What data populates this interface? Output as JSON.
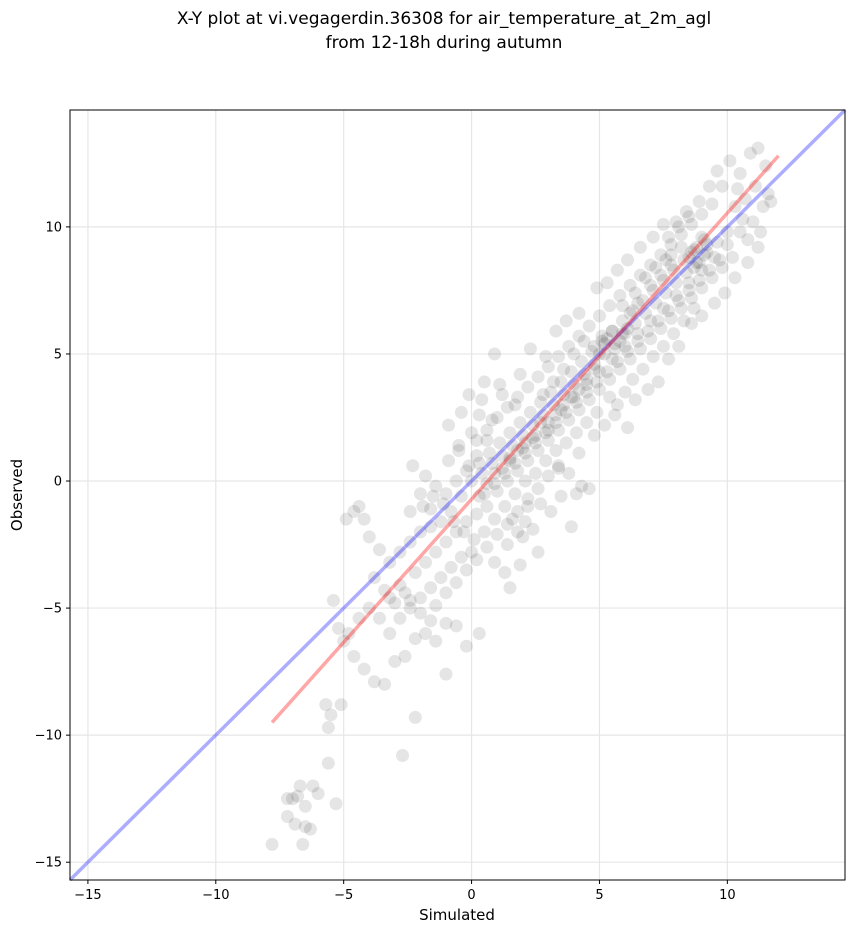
{
  "chart_data": {
    "type": "scatter",
    "title": [
      "X-Y plot at vi.vegagerdin.36308 for air_temperature_at_2m_agl",
      "from 12-18h during autumn"
    ],
    "xlabel": "Simulated",
    "ylabel": "Observed",
    "xlim": [
      -15.7,
      14.6
    ],
    "ylim": [
      -15.7,
      14.6
    ],
    "xticks": [
      -15,
      -10,
      -5,
      0,
      5,
      10
    ],
    "yticks": [
      -15,
      -10,
      -5,
      0,
      5,
      10
    ],
    "xtick_labels": [
      "−15",
      "−10",
      "−5",
      "0",
      "5",
      "10"
    ],
    "ytick_labels": [
      "−15",
      "−10",
      "−5",
      "0",
      "5",
      "10"
    ],
    "grid": true,
    "point_color": "#000000",
    "points": [
      [
        -7.8,
        -14.3
      ],
      [
        -6.6,
        -14.3
      ],
      [
        -7.2,
        -13.2
      ],
      [
        -6.9,
        -13.5
      ],
      [
        -6.5,
        -13.6
      ],
      [
        -6.3,
        -13.7
      ],
      [
        -7.0,
        -12.5
      ],
      [
        -6.7,
        -12.0
      ],
      [
        -6.2,
        -12.0
      ],
      [
        -6.0,
        -12.3
      ],
      [
        -6.5,
        -12.8
      ],
      [
        -5.3,
        -12.7
      ],
      [
        -7.2,
        -12.5
      ],
      [
        -6.8,
        -12.4
      ],
      [
        -5.6,
        -11.1
      ],
      [
        -5.6,
        -9.7
      ],
      [
        -5.5,
        -9.2
      ],
      [
        -5.7,
        -8.8
      ],
      [
        -5.1,
        -8.8
      ],
      [
        -2.7,
        -10.8
      ],
      [
        -2.2,
        -9.3
      ],
      [
        -1.0,
        -7.6
      ],
      [
        -0.2,
        -6.5
      ],
      [
        0.3,
        -6.0
      ],
      [
        -5.4,
        -4.7
      ],
      [
        -5.2,
        -5.8
      ],
      [
        -5.0,
        -6.3
      ],
      [
        -4.6,
        -6.9
      ],
      [
        -4.2,
        -7.4
      ],
      [
        -3.8,
        -7.9
      ],
      [
        -3.4,
        -8.0
      ],
      [
        -3.0,
        -7.1
      ],
      [
        -2.6,
        -6.9
      ],
      [
        -2.2,
        -6.2
      ],
      [
        -1.8,
        -6.0
      ],
      [
        -1.4,
        -6.3
      ],
      [
        -1.0,
        -5.6
      ],
      [
        -0.6,
        -5.7
      ],
      [
        -4.8,
        -6.0
      ],
      [
        -4.4,
        -5.4
      ],
      [
        -4.0,
        -5.0
      ],
      [
        -3.6,
        -5.4
      ],
      [
        -3.2,
        -6.0
      ],
      [
        -2.8,
        -5.4
      ],
      [
        -2.4,
        -5.0
      ],
      [
        -2.0,
        -4.6
      ],
      [
        -1.6,
        -4.2
      ],
      [
        -1.2,
        -3.8
      ],
      [
        -0.8,
        -3.4
      ],
      [
        -0.4,
        -3.0
      ],
      [
        0.0,
        -2.8
      ],
      [
        -4.9,
        -1.5
      ],
      [
        -4.6,
        -1.2
      ],
      [
        -4.4,
        -1.0
      ],
      [
        -4.2,
        -1.5
      ],
      [
        -4.0,
        -2.2
      ],
      [
        -3.6,
        -2.7
      ],
      [
        -3.2,
        -3.2
      ],
      [
        -2.8,
        -2.8
      ],
      [
        -2.4,
        -2.4
      ],
      [
        -2.0,
        -2.0
      ],
      [
        -1.6,
        -1.8
      ],
      [
        -1.2,
        -1.6
      ],
      [
        -0.8,
        -1.2
      ],
      [
        -0.4,
        -0.6
      ],
      [
        -3.8,
        -3.8
      ],
      [
        -3.4,
        -4.3
      ],
      [
        -3.0,
        -4.8
      ],
      [
        -2.6,
        -4.4
      ],
      [
        -2.2,
        -3.6
      ],
      [
        -1.8,
        -3.2
      ],
      [
        -1.4,
        -2.8
      ],
      [
        -1.0,
        -2.4
      ],
      [
        -0.6,
        -2.0
      ],
      [
        -0.2,
        -1.6
      ],
      [
        0.2,
        -1.3
      ],
      [
        0.6,
        -1.0
      ],
      [
        -2.3,
        0.6
      ],
      [
        -1.8,
        0.2
      ],
      [
        -1.4,
        -0.2
      ],
      [
        -1.0,
        -0.5
      ],
      [
        -0.6,
        0.0
      ],
      [
        -0.2,
        0.4
      ],
      [
        -0.9,
        2.2
      ],
      [
        -0.5,
        1.4
      ],
      [
        -0.1,
        3.4
      ],
      [
        0.3,
        2.6
      ],
      [
        0.5,
        3.9
      ],
      [
        0.9,
        5.0
      ],
      [
        0.2,
        1.0
      ],
      [
        0.6,
        1.6
      ],
      [
        0.9,
        -3.2
      ],
      [
        1.3,
        -3.6
      ],
      [
        1.5,
        -4.2
      ],
      [
        1.9,
        -3.3
      ],
      [
        1.4,
        -2.5
      ],
      [
        1.8,
        -2.0
      ],
      [
        2.1,
        -1.6
      ],
      [
        2.6,
        -2.8
      ],
      [
        2.2,
        -1.0
      ],
      [
        2.7,
        -0.9
      ],
      [
        3.1,
        -1.2
      ],
      [
        3.5,
        -0.6
      ],
      [
        3.9,
        -1.8
      ],
      [
        4.1,
        -0.5
      ],
      [
        4.3,
        -0.2
      ],
      [
        4.6,
        -0.3
      ],
      [
        3.8,
        0.3
      ],
      [
        3.4,
        0.6
      ],
      [
        0.0,
        0.0
      ],
      [
        0.4,
        0.3
      ],
      [
        0.8,
        0.7
      ],
      [
        1.2,
        1.0
      ],
      [
        1.6,
        1.4
      ],
      [
        2.0,
        1.8
      ],
      [
        2.4,
        2.2
      ],
      [
        2.8,
        2.6
      ],
      [
        3.2,
        3.0
      ],
      [
        3.6,
        3.4
      ],
      [
        4.0,
        3.8
      ],
      [
        4.4,
        4.2
      ],
      [
        4.8,
        4.6
      ],
      [
        5.2,
        5.0
      ],
      [
        5.6,
        5.4
      ],
      [
        6.0,
        5.8
      ],
      [
        6.4,
        6.2
      ],
      [
        6.8,
        6.6
      ],
      [
        7.2,
        7.0
      ],
      [
        7.6,
        7.4
      ],
      [
        8.0,
        7.8
      ],
      [
        8.4,
        8.2
      ],
      [
        8.8,
        8.6
      ],
      [
        9.2,
        9.0
      ],
      [
        9.6,
        9.4
      ],
      [
        10.0,
        9.8
      ],
      [
        0.2,
        1.6
      ],
      [
        0.6,
        2.0
      ],
      [
        1.0,
        2.5
      ],
      [
        1.4,
        2.9
      ],
      [
        1.8,
        3.3
      ],
      [
        2.2,
        3.7
      ],
      [
        2.6,
        4.1
      ],
      [
        3.0,
        4.5
      ],
      [
        3.4,
        4.9
      ],
      [
        3.8,
        5.3
      ],
      [
        4.2,
        5.7
      ],
      [
        4.6,
        6.1
      ],
      [
        5.0,
        6.5
      ],
      [
        5.4,
        6.9
      ],
      [
        5.8,
        7.3
      ],
      [
        6.2,
        7.7
      ],
      [
        6.6,
        8.1
      ],
      [
        7.0,
        8.5
      ],
      [
        7.4,
        8.9
      ],
      [
        7.8,
        9.3
      ],
      [
        8.2,
        9.7
      ],
      [
        8.6,
        10.1
      ],
      [
        9.0,
        10.5
      ],
      [
        9.4,
        10.9
      ],
      [
        1.0,
        -0.4
      ],
      [
        1.4,
        0.0
      ],
      [
        1.8,
        0.4
      ],
      [
        2.2,
        0.8
      ],
      [
        2.6,
        1.2
      ],
      [
        3.0,
        1.6
      ],
      [
        3.4,
        2.0
      ],
      [
        3.8,
        2.4
      ],
      [
        4.2,
        2.8
      ],
      [
        4.6,
        3.2
      ],
      [
        5.0,
        3.6
      ],
      [
        5.4,
        4.0
      ],
      [
        5.8,
        4.4
      ],
      [
        6.2,
        4.8
      ],
      [
        6.6,
        5.2
      ],
      [
        7.0,
        5.6
      ],
      [
        7.4,
        6.0
      ],
      [
        7.8,
        6.4
      ],
      [
        8.2,
        6.8
      ],
      [
        8.6,
        7.2
      ],
      [
        9.0,
        7.6
      ],
      [
        9.4,
        8.0
      ],
      [
        9.8,
        8.4
      ],
      [
        10.2,
        8.8
      ],
      [
        1.5,
        0.8
      ],
      [
        2.0,
        1.3
      ],
      [
        2.5,
        1.8
      ],
      [
        3.0,
        2.3
      ],
      [
        3.5,
        2.8
      ],
      [
        4.0,
        3.3
      ],
      [
        4.5,
        3.8
      ],
      [
        5.0,
        4.3
      ],
      [
        5.5,
        4.8
      ],
      [
        6.0,
        5.3
      ],
      [
        6.5,
        5.8
      ],
      [
        7.0,
        6.3
      ],
      [
        7.5,
        6.8
      ],
      [
        8.0,
        7.3
      ],
      [
        8.5,
        7.8
      ],
      [
        9.0,
        8.3
      ],
      [
        9.5,
        8.8
      ],
      [
        10.0,
        9.3
      ],
      [
        10.5,
        9.8
      ],
      [
        0.8,
        2.4
      ],
      [
        1.2,
        3.4
      ],
      [
        1.9,
        4.2
      ],
      [
        2.3,
        5.2
      ],
      [
        2.9,
        4.9
      ],
      [
        3.3,
        5.9
      ],
      [
        3.7,
        6.3
      ],
      [
        4.2,
        6.6
      ],
      [
        4.9,
        7.6
      ],
      [
        5.3,
        7.8
      ],
      [
        5.7,
        8.3
      ],
      [
        6.1,
        8.7
      ],
      [
        6.6,
        9.2
      ],
      [
        7.1,
        9.6
      ],
      [
        7.5,
        10.1
      ],
      [
        8.0,
        10.2
      ],
      [
        8.4,
        10.6
      ],
      [
        8.9,
        11.0
      ],
      [
        9.3,
        11.6
      ],
      [
        4.2,
        1.1
      ],
      [
        4.8,
        1.8
      ],
      [
        5.2,
        2.2
      ],
      [
        5.6,
        2.6
      ],
      [
        6.1,
        2.1
      ],
      [
        6.4,
        3.2
      ],
      [
        6.9,
        3.6
      ],
      [
        7.3,
        3.9
      ],
      [
        7.7,
        4.8
      ],
      [
        8.1,
        5.3
      ],
      [
        8.6,
        6.2
      ],
      [
        9.0,
        6.5
      ],
      [
        9.5,
        7.0
      ],
      [
        9.9,
        7.4
      ],
      [
        10.3,
        8.0
      ],
      [
        10.8,
        8.6
      ],
      [
        11.2,
        9.2
      ],
      [
        11.0,
        10.2
      ],
      [
        10.1,
        12.6
      ],
      [
        10.5,
        12.1
      ],
      [
        10.9,
        12.9
      ],
      [
        11.2,
        13.1
      ],
      [
        11.5,
        12.4
      ],
      [
        11.1,
        11.6
      ],
      [
        11.6,
        11.3
      ],
      [
        10.7,
        11.1
      ],
      [
        10.3,
        10.8
      ],
      [
        11.4,
        10.8
      ],
      [
        11.7,
        11.0
      ],
      [
        10.6,
        10.3
      ],
      [
        9.8,
        11.6
      ],
      [
        9.6,
        12.2
      ],
      [
        10.4,
        11.5
      ],
      [
        10.8,
        9.5
      ],
      [
        11.3,
        9.8
      ],
      [
        -2.8,
        -4.1
      ],
      [
        -2.4,
        -4.7
      ],
      [
        -2.0,
        -5.2
      ],
      [
        -1.6,
        -5.5
      ],
      [
        -3.2,
        -4.6
      ],
      [
        -1.4,
        -4.9
      ],
      [
        -1.0,
        -4.4
      ],
      [
        -0.6,
        -4.0
      ],
      [
        -0.2,
        -3.5
      ],
      [
        0.2,
        -3.1
      ],
      [
        0.6,
        -2.6
      ],
      [
        1.0,
        -2.1
      ],
      [
        1.4,
        -1.7
      ],
      [
        1.8,
        -1.2
      ],
      [
        2.2,
        -0.7
      ],
      [
        2.6,
        -0.3
      ],
      [
        3.0,
        0.2
      ],
      [
        3.4,
        0.5
      ],
      [
        -1.9,
        -1.0
      ],
      [
        -1.5,
        -0.6
      ],
      [
        -1.1,
        -0.9
      ],
      [
        -0.7,
        -1.6
      ],
      [
        -0.3,
        -2.0
      ],
      [
        0.1,
        -2.3
      ],
      [
        0.5,
        -2.0
      ],
      [
        0.9,
        -1.5
      ],
      [
        1.3,
        -1.0
      ],
      [
        1.7,
        -0.5
      ],
      [
        2.1,
        0.0
      ],
      [
        2.5,
        0.3
      ],
      [
        2.9,
        0.8
      ],
      [
        3.3,
        1.2
      ],
      [
        3.7,
        1.5
      ],
      [
        4.1,
        1.9
      ],
      [
        4.5,
        2.3
      ],
      [
        4.9,
        2.7
      ],
      [
        0.3,
        0.7
      ],
      [
        0.7,
        1.1
      ],
      [
        1.1,
        1.5
      ],
      [
        1.5,
        1.9
      ],
      [
        1.9,
        2.3
      ],
      [
        2.3,
        2.7
      ],
      [
        2.7,
        3.1
      ],
      [
        3.1,
        3.5
      ],
      [
        3.5,
        3.9
      ],
      [
        3.9,
        4.3
      ],
      [
        4.3,
        4.7
      ],
      [
        4.7,
        5.1
      ],
      [
        5.1,
        5.5
      ],
      [
        5.5,
        5.9
      ],
      [
        5.9,
        6.3
      ],
      [
        6.3,
        6.7
      ],
      [
        6.7,
        7.1
      ],
      [
        7.1,
        7.5
      ],
      [
        7.5,
        7.9
      ],
      [
        7.9,
        8.3
      ],
      [
        8.3,
        8.7
      ],
      [
        8.7,
        9.1
      ],
      [
        9.1,
        9.5
      ],
      [
        0.5,
        -0.5
      ],
      [
        0.9,
        -0.1
      ],
      [
        1.3,
        0.3
      ],
      [
        1.7,
        0.7
      ],
      [
        2.1,
        1.1
      ],
      [
        2.5,
        1.5
      ],
      [
        2.9,
        1.9
      ],
      [
        3.3,
        2.3
      ],
      [
        3.7,
        2.7
      ],
      [
        4.1,
        3.1
      ],
      [
        4.5,
        3.5
      ],
      [
        4.9,
        3.9
      ],
      [
        5.3,
        4.3
      ],
      [
        5.7,
        4.7
      ],
      [
        6.1,
        5.1
      ],
      [
        6.5,
        5.5
      ],
      [
        6.9,
        5.9
      ],
      [
        7.3,
        6.3
      ],
      [
        7.7,
        6.7
      ],
      [
        8.1,
        7.1
      ],
      [
        8.5,
        7.5
      ],
      [
        8.9,
        7.9
      ],
      [
        9.3,
        8.3
      ],
      [
        9.7,
        8.7
      ],
      [
        5.0,
        5.0
      ],
      [
        5.3,
        5.6
      ],
      [
        5.6,
        5.2
      ],
      [
        5.9,
        5.8
      ],
      [
        5.2,
        5.4
      ],
      [
        5.5,
        5.9
      ],
      [
        5.8,
        5.5
      ],
      [
        6.1,
        6.0
      ],
      [
        4.8,
        5.3
      ],
      [
        5.1,
        5.7
      ],
      [
        8.5,
        8.8
      ],
      [
        8.8,
        9.2
      ],
      [
        9.1,
        8.9
      ],
      [
        8.6,
        9.0
      ],
      [
        8.9,
        8.6
      ],
      [
        9.2,
        9.3
      ],
      [
        8.7,
        8.4
      ],
      [
        9.0,
        9.6
      ],
      [
        3.0,
        2.0
      ],
      [
        3.3,
        2.6
      ],
      [
        2.7,
        2.3
      ],
      [
        3.6,
        3.0
      ],
      [
        2.4,
        1.7
      ],
      [
        3.9,
        3.3
      ],
      [
        4.2,
        3.6
      ],
      [
        4.5,
        4.0
      ],
      [
        4.8,
        4.4
      ],
      [
        1.2,
        0.5
      ],
      [
        1.5,
        0.9
      ],
      [
        0.9,
        0.3
      ],
      [
        1.8,
        1.2
      ],
      [
        0.6,
        -0.1
      ],
      [
        2.1,
        1.5
      ],
      [
        6.8,
        8.0
      ],
      [
        7.2,
        8.4
      ],
      [
        7.6,
        8.7
      ],
      [
        7.0,
        7.7
      ],
      [
        7.4,
        8.1
      ],
      [
        7.8,
        8.5
      ],
      [
        6.5,
        7.0
      ],
      [
        6.2,
        6.6
      ],
      [
        5.9,
        6.9
      ],
      [
        6.4,
        7.4
      ],
      [
        4.0,
        5.0
      ],
      [
        4.4,
        5.5
      ],
      [
        3.6,
        4.4
      ],
      [
        3.2,
        3.9
      ],
      [
        2.8,
        3.4
      ],
      [
        -2.0,
        -0.5
      ],
      [
        -1.6,
        -1.1
      ],
      [
        -2.4,
        -1.2
      ],
      [
        -0.9,
        0.8
      ],
      [
        -0.5,
        1.2
      ],
      [
        -0.1,
        0.6
      ],
      [
        0.3,
        -0.6
      ],
      [
        1.6,
        -1.5
      ],
      [
        2.0,
        -2.2
      ],
      [
        2.4,
        -1.9
      ],
      [
        0.0,
        1.9
      ],
      [
        -0.4,
        2.7
      ],
      [
        0.4,
        3.2
      ],
      [
        1.1,
        3.8
      ],
      [
        1.7,
        3.0
      ],
      [
        6.0,
        3.5
      ],
      [
        6.3,
        4.0
      ],
      [
        6.7,
        4.4
      ],
      [
        7.1,
        4.9
      ],
      [
        7.5,
        5.3
      ],
      [
        7.9,
        5.8
      ],
      [
        8.3,
        6.3
      ],
      [
        8.7,
        6.8
      ],
      [
        5.7,
        3.0
      ],
      [
        5.4,
        3.3
      ],
      [
        7.7,
        9.6
      ],
      [
        8.1,
        10.0
      ],
      [
        8.5,
        10.4
      ],
      [
        8.2,
        9.2
      ],
      [
        7.8,
        8.9
      ]
    ],
    "fit_line": {
      "color": "#ff0000",
      "x": [
        -7.8,
        12.0
      ],
      "y": [
        -9.5,
        12.8
      ]
    },
    "identity_line": {
      "color": "#0000ff",
      "x": [
        -15.7,
        14.6
      ],
      "y": [
        -15.7,
        14.6
      ]
    }
  }
}
